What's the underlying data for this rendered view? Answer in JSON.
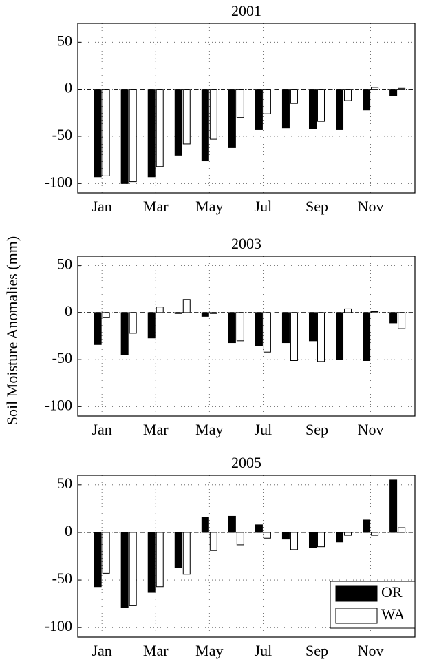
{
  "ylabel": "Soil Moisture Anomalies (mm)",
  "chart_data": [
    {
      "type": "bar",
      "title": "2001",
      "categories": [
        "Jan",
        null,
        "Mar",
        null,
        "May",
        null,
        "Jul",
        null,
        "Sep",
        null,
        "Nov",
        null
      ],
      "series": [
        {
          "color": "#000000",
          "values": [
            -93,
            -100,
            -93,
            -70,
            -76,
            -62,
            -43,
            -41,
            -42,
            -43,
            -22,
            -7
          ]
        },
        {
          "color": "#ffffff",
          "values": [
            -92,
            -98,
            -82,
            -58,
            -53,
            -30,
            -26,
            -15,
            -34,
            -12,
            2,
            1
          ]
        }
      ],
      "ylim": [
        -110,
        70
      ],
      "yticks": [
        -100,
        -50,
        0,
        50
      ],
      "grid": true
    },
    {
      "type": "bar",
      "title": "2003",
      "categories": [
        "Jan",
        null,
        "Mar",
        null,
        "May",
        null,
        "Jul",
        null,
        "Sep",
        null,
        "Nov",
        null
      ],
      "series": [
        {
          "color": "#000000",
          "values": [
            -34,
            -45,
            -27,
            -1,
            -4,
            -32,
            -35,
            -32,
            -30,
            -50,
            -51,
            -11
          ]
        },
        {
          "color": "#ffffff",
          "values": [
            -5,
            -22,
            6,
            14,
            -1,
            -30,
            -42,
            -51,
            -52,
            4,
            1,
            -17
          ]
        }
      ],
      "ylim": [
        -110,
        60
      ],
      "yticks": [
        -100,
        -50,
        0,
        50
      ],
      "grid": true
    },
    {
      "type": "bar",
      "title": "2005",
      "categories": [
        "Jan",
        null,
        "Mar",
        null,
        "May",
        null,
        "Jul",
        null,
        "Sep",
        null,
        "Nov",
        null
      ],
      "series": [
        {
          "name": "OR",
          "color": "#000000",
          "values": [
            -57,
            -79,
            -63,
            -37,
            16,
            17,
            8,
            -7,
            -16,
            -10,
            13,
            55
          ]
        },
        {
          "name": "WA",
          "color": "#ffffff",
          "values": [
            -43,
            -77,
            -57,
            -44,
            -19,
            -13,
            -6,
            -18,
            -15,
            -3,
            -3,
            5
          ]
        }
      ],
      "ylim": [
        -110,
        60
      ],
      "yticks": [
        -100,
        -50,
        0,
        50
      ],
      "grid": true,
      "legend": "lower right"
    }
  ]
}
